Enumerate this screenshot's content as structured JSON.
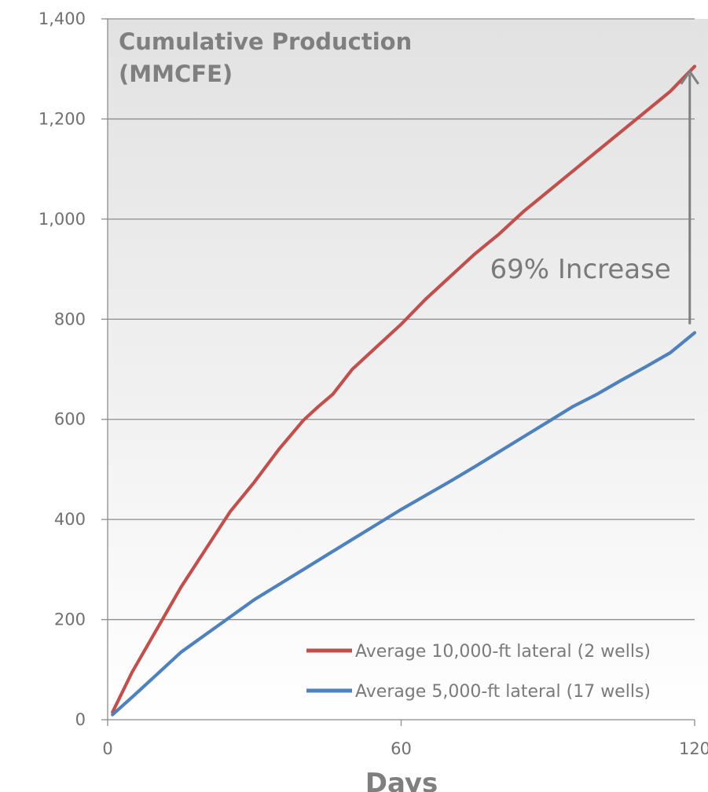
{
  "chart_data": {
    "type": "line",
    "title": "Cumulative Production",
    "subtitle": "(MMCFE)",
    "xlabel": "Days",
    "ylabel": "",
    "xlim": [
      0,
      120
    ],
    "ylim": [
      0,
      1400
    ],
    "x_ticks": [
      "0",
      "60",
      "120"
    ],
    "y_ticks": [
      "0",
      "200",
      "400",
      "600",
      "800",
      "1,000",
      "1,200",
      "1,400"
    ],
    "grid": true,
    "legend_position": "bottom-right",
    "series": [
      {
        "name": "Average 10,000-ft lateral (2 wells)",
        "color": "#c0504d",
        "x": [
          1,
          5,
          10,
          15,
          20,
          25,
          30,
          35,
          40,
          43,
          46,
          50,
          55,
          60,
          65,
          70,
          75,
          80,
          85,
          90,
          95,
          100,
          105,
          110,
          115,
          120
        ],
        "y": [
          15,
          95,
          180,
          265,
          340,
          415,
          475,
          540,
          598,
          625,
          650,
          700,
          745,
          790,
          840,
          885,
          930,
          970,
          1015,
          1055,
          1095,
          1135,
          1175,
          1215,
          1255,
          1305
        ]
      },
      {
        "name": "Average 5,000-ft lateral (17 wells)",
        "color": "#4f81bd",
        "x": [
          1,
          5,
          10,
          15,
          20,
          25,
          30,
          35,
          40,
          45,
          50,
          55,
          60,
          65,
          70,
          75,
          80,
          85,
          90,
          95,
          100,
          105,
          110,
          115,
          120
        ],
        "y": [
          10,
          45,
          90,
          135,
          170,
          205,
          240,
          270,
          300,
          330,
          360,
          390,
          420,
          448,
          476,
          505,
          535,
          565,
          595,
          625,
          650,
          678,
          705,
          733,
          773
        ]
      }
    ],
    "annotations": [
      {
        "text": "69% Increase",
        "type": "arrow",
        "x": 119,
        "from_y": 790,
        "to_y": 1295
      }
    ]
  }
}
